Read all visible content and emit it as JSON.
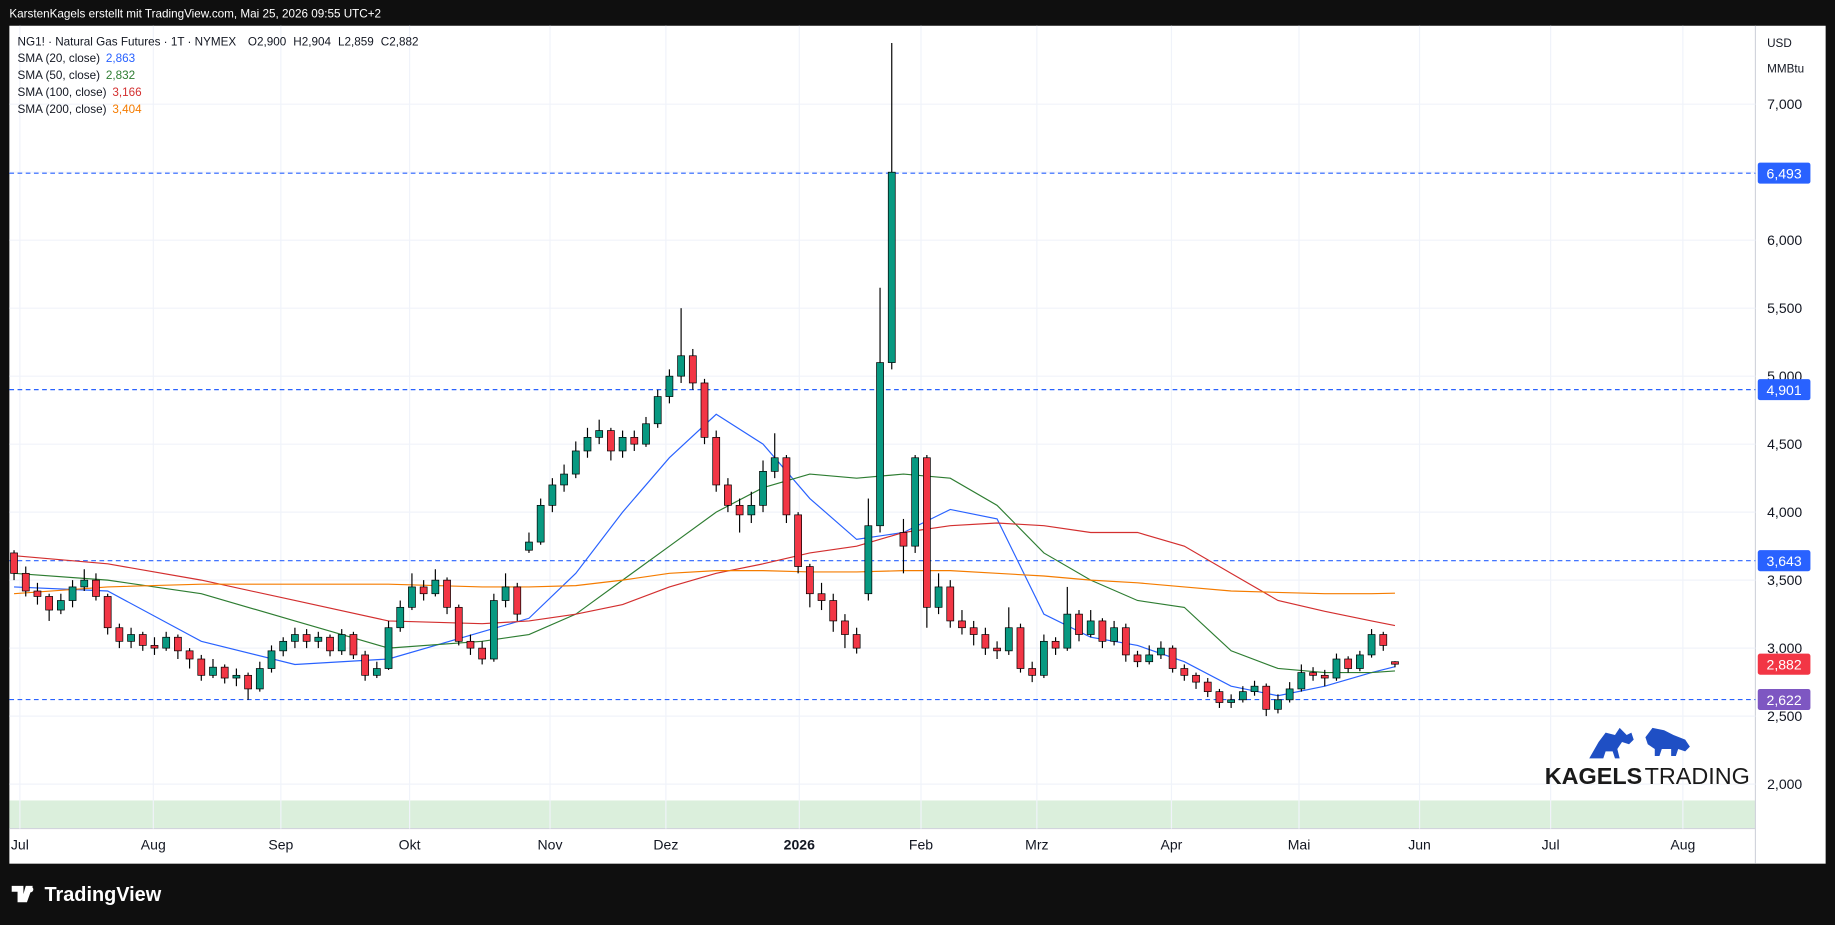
{
  "header": "KarstenKagels erstellt mit TradingView.com, Mai 25, 2026 09:55 UTC+2",
  "footer_brand": "TradingView",
  "watermark": {
    "left": "KAGELS",
    "right": "TRADING"
  },
  "chart_data": {
    "type": "candlestick",
    "title": "NG1! · Natural Gas Futures · 1T · NYMEX",
    "ohlc_legend": [
      {
        "key": "O",
        "value": 2.9,
        "label": "2,900"
      },
      {
        "key": "H",
        "value": 2.904,
        "label": "2,904"
      },
      {
        "key": "L",
        "value": 2.859,
        "label": "2,859"
      },
      {
        "key": "C",
        "value": 2.882,
        "label": "2,882"
      }
    ],
    "currency": "USD",
    "unit": "MMBtu",
    "up_color": "#089981",
    "down_color": "#f23645",
    "grid": true,
    "xlim": [
      -0.4,
      148.8
    ],
    "xticks": [
      {
        "value": 0.5,
        "label": "Jul"
      },
      {
        "value": 11.9,
        "label": "Aug"
      },
      {
        "value": 22.8,
        "label": "Sep"
      },
      {
        "value": 33.8,
        "label": "Okt"
      },
      {
        "value": 45.8,
        "label": "Nov"
      },
      {
        "value": 55.7,
        "label": "Dez"
      },
      {
        "value": 67.1,
        "label": "2026"
      },
      {
        "value": 77.5,
        "label": "Feb"
      },
      {
        "value": 87.4,
        "label": "Mrz"
      },
      {
        "value": 98.9,
        "label": "Apr"
      },
      {
        "value": 109.8,
        "label": "Mai"
      },
      {
        "value": 120.1,
        "label": "Jun"
      },
      {
        "value": 131.3,
        "label": "Jul"
      },
      {
        "value": 142.6,
        "label": "Aug"
      }
    ],
    "ylim": [
      1.673,
      7.577
    ],
    "yticks": [
      {
        "value": 2,
        "label": "2,000"
      },
      {
        "value": 2.5,
        "label": "2,500"
      },
      {
        "value": 3,
        "label": "3,000"
      },
      {
        "value": 3.5,
        "label": "3,500"
      },
      {
        "value": 4,
        "label": "4,000"
      },
      {
        "value": 4.5,
        "label": "4,500"
      },
      {
        "value": 5,
        "label": "5,000"
      },
      {
        "value": 5.5,
        "label": "5,500"
      },
      {
        "value": 6,
        "label": "6,000"
      },
      {
        "value": 6.5,
        "label": "6,500"
      },
      {
        "value": 7,
        "label": "7,000"
      }
    ],
    "candles": [
      [
        3.7,
        3.72,
        3.5,
        3.55
      ],
      [
        3.55,
        3.6,
        3.38,
        3.42
      ],
      [
        3.42,
        3.48,
        3.32,
        3.38
      ],
      [
        3.38,
        3.4,
        3.2,
        3.28
      ],
      [
        3.28,
        3.4,
        3.25,
        3.35
      ],
      [
        3.35,
        3.5,
        3.3,
        3.45
      ],
      [
        3.45,
        3.58,
        3.42,
        3.5
      ],
      [
        3.5,
        3.55,
        3.35,
        3.38
      ],
      [
        3.38,
        3.4,
        3.1,
        3.15
      ],
      [
        3.15,
        3.18,
        3.0,
        3.05
      ],
      [
        3.05,
        3.15,
        3.0,
        3.1
      ],
      [
        3.1,
        3.12,
        2.98,
        3.02
      ],
      [
        3.02,
        3.08,
        2.95,
        3.0
      ],
      [
        3.0,
        3.12,
        2.98,
        3.08
      ],
      [
        3.08,
        3.1,
        2.92,
        2.98
      ],
      [
        2.98,
        3.0,
        2.85,
        2.92
      ],
      [
        2.92,
        2.95,
        2.76,
        2.8
      ],
      [
        2.8,
        2.92,
        2.78,
        2.86
      ],
      [
        2.86,
        2.88,
        2.74,
        2.78
      ],
      [
        2.78,
        2.85,
        2.72,
        2.8
      ],
      [
        2.8,
        2.82,
        2.62,
        2.7
      ],
      [
        2.7,
        2.9,
        2.68,
        2.85
      ],
      [
        2.85,
        3.02,
        2.82,
        2.98
      ],
      [
        2.98,
        3.08,
        2.94,
        3.05
      ],
      [
        3.05,
        3.15,
        3.0,
        3.1
      ],
      [
        3.1,
        3.14,
        3.0,
        3.05
      ],
      [
        3.05,
        3.12,
        3.0,
        3.08
      ],
      [
        3.08,
        3.1,
        2.94,
        2.98
      ],
      [
        2.98,
        3.14,
        2.95,
        3.1
      ],
      [
        3.1,
        3.12,
        2.92,
        2.95
      ],
      [
        2.95,
        2.98,
        2.76,
        2.8
      ],
      [
        2.8,
        2.9,
        2.78,
        2.85
      ],
      [
        2.85,
        3.2,
        2.84,
        3.15
      ],
      [
        3.15,
        3.35,
        3.12,
        3.3
      ],
      [
        3.3,
        3.55,
        3.28,
        3.45
      ],
      [
        3.45,
        3.5,
        3.35,
        3.4
      ],
      [
        3.4,
        3.58,
        3.38,
        3.5
      ],
      [
        3.5,
        3.52,
        3.25,
        3.3
      ],
      [
        3.3,
        3.32,
        3.02,
        3.05
      ],
      [
        3.05,
        3.1,
        2.95,
        3.0
      ],
      [
        3.0,
        3.05,
        2.88,
        2.92
      ],
      [
        2.92,
        3.4,
        2.9,
        3.35
      ],
      [
        3.35,
        3.55,
        3.3,
        3.45
      ],
      [
        3.45,
        3.48,
        3.2,
        3.25
      ],
      [
        3.72,
        3.85,
        3.7,
        3.78
      ],
      [
        3.78,
        4.1,
        3.76,
        4.05
      ],
      [
        4.05,
        4.25,
        4.0,
        4.2
      ],
      [
        4.2,
        4.35,
        4.15,
        4.28
      ],
      [
        4.28,
        4.52,
        4.25,
        4.45
      ],
      [
        4.45,
        4.62,
        4.4,
        4.55
      ],
      [
        4.55,
        4.68,
        4.5,
        4.6
      ],
      [
        4.6,
        4.62,
        4.38,
        4.45
      ],
      [
        4.45,
        4.6,
        4.4,
        4.55
      ],
      [
        4.55,
        4.6,
        4.45,
        4.5
      ],
      [
        4.5,
        4.7,
        4.48,
        4.65
      ],
      [
        4.65,
        4.9,
        4.62,
        4.85
      ],
      [
        4.85,
        5.05,
        4.8,
        5.0
      ],
      [
        5.0,
        5.5,
        4.95,
        5.15
      ],
      [
        5.15,
        5.2,
        4.9,
        4.95
      ],
      [
        4.95,
        4.98,
        4.5,
        4.55
      ],
      [
        4.55,
        4.6,
        4.15,
        4.2
      ],
      [
        4.2,
        4.25,
        4.0,
        4.05
      ],
      [
        4.05,
        4.1,
        3.85,
        3.98
      ],
      [
        3.98,
        4.15,
        3.92,
        4.05
      ],
      [
        4.05,
        4.38,
        4.0,
        4.3
      ],
      [
        4.3,
        4.58,
        4.25,
        4.4
      ],
      [
        4.4,
        4.42,
        3.92,
        3.98
      ],
      [
        3.98,
        4.0,
        3.55,
        3.6
      ],
      [
        3.6,
        3.62,
        3.3,
        3.4
      ],
      [
        3.4,
        3.48,
        3.28,
        3.35
      ],
      [
        3.35,
        3.4,
        3.12,
        3.2
      ],
      [
        3.2,
        3.25,
        3.0,
        3.1
      ],
      [
        3.1,
        3.15,
        2.96,
        3.0
      ],
      [
        3.4,
        4.1,
        3.35,
        3.9
      ],
      [
        3.9,
        5.65,
        3.85,
        5.1
      ],
      [
        5.1,
        7.45,
        5.05,
        6.5
      ],
      [
        3.85,
        3.95,
        3.55,
        3.75
      ],
      [
        3.75,
        4.42,
        3.7,
        4.4
      ],
      [
        4.4,
        4.42,
        3.15,
        3.3
      ],
      [
        3.3,
        3.55,
        3.25,
        3.45
      ],
      [
        3.45,
        3.5,
        3.15,
        3.2
      ],
      [
        3.2,
        3.28,
        3.1,
        3.15
      ],
      [
        3.15,
        3.2,
        3.02,
        3.1
      ],
      [
        3.1,
        3.15,
        2.95,
        3.0
      ],
      [
        3.0,
        3.05,
        2.92,
        2.98
      ],
      [
        2.98,
        3.3,
        2.95,
        3.15
      ],
      [
        3.15,
        3.18,
        2.82,
        2.85
      ],
      [
        2.85,
        2.9,
        2.75,
        2.8
      ],
      [
        2.8,
        3.1,
        2.78,
        3.05
      ],
      [
        3.05,
        3.08,
        2.95,
        3.0
      ],
      [
        3.0,
        3.45,
        2.98,
        3.25
      ],
      [
        3.25,
        3.28,
        3.05,
        3.1
      ],
      [
        3.1,
        3.28,
        3.08,
        3.2
      ],
      [
        3.2,
        3.22,
        3.0,
        3.05
      ],
      [
        3.05,
        3.2,
        3.02,
        3.15
      ],
      [
        3.15,
        3.18,
        2.9,
        2.95
      ],
      [
        2.95,
        2.98,
        2.86,
        2.9
      ],
      [
        2.9,
        3.02,
        2.88,
        2.95
      ],
      [
        2.95,
        3.05,
        2.92,
        3.0
      ],
      [
        3.0,
        3.02,
        2.82,
        2.85
      ],
      [
        2.85,
        2.88,
        2.76,
        2.8
      ],
      [
        2.8,
        2.82,
        2.7,
        2.75
      ],
      [
        2.75,
        2.78,
        2.64,
        2.68
      ],
      [
        2.68,
        2.7,
        2.56,
        2.6
      ],
      [
        2.6,
        2.66,
        2.56,
        2.62
      ],
      [
        2.62,
        2.72,
        2.6,
        2.68
      ],
      [
        2.68,
        2.76,
        2.65,
        2.72
      ],
      [
        2.72,
        2.74,
        2.5,
        2.55
      ],
      [
        2.55,
        2.66,
        2.52,
        2.62
      ],
      [
        2.62,
        2.75,
        2.6,
        2.7
      ],
      [
        2.7,
        2.88,
        2.68,
        2.82
      ],
      [
        2.82,
        2.86,
        2.76,
        2.8
      ],
      [
        2.8,
        2.84,
        2.72,
        2.78
      ],
      [
        2.78,
        2.96,
        2.76,
        2.92
      ],
      [
        2.92,
        2.94,
        2.82,
        2.85
      ],
      [
        2.85,
        2.98,
        2.83,
        2.95
      ],
      [
        2.95,
        3.14,
        2.93,
        3.1
      ],
      [
        3.1,
        3.12,
        2.98,
        3.02
      ],
      [
        2.9,
        2.904,
        2.859,
        2.882
      ]
    ],
    "series": [
      {
        "name": "SMA (20, close)",
        "color": "#2962ff",
        "value_label": "2,863",
        "x": [
          0,
          8,
          16,
          24,
          32,
          40,
          44,
          48,
          52,
          56,
          60,
          64,
          68,
          72,
          76,
          80,
          84,
          88,
          92,
          96,
          100,
          104,
          108,
          112,
          116,
          118
        ],
        "values": [
          3.45,
          3.42,
          3.05,
          2.88,
          2.92,
          3.12,
          3.22,
          3.55,
          4.0,
          4.4,
          4.72,
          4.5,
          4.1,
          3.8,
          3.85,
          4.02,
          3.95,
          3.25,
          3.08,
          3.02,
          2.9,
          2.72,
          2.65,
          2.72,
          2.82,
          2.863
        ]
      },
      {
        "name": "SMA (50, close)",
        "color": "#2e7d32",
        "value_label": "2,832",
        "x": [
          0,
          8,
          16,
          24,
          32,
          40,
          44,
          48,
          52,
          56,
          60,
          64,
          68,
          72,
          76,
          80,
          84,
          88,
          92,
          96,
          100,
          104,
          108,
          112,
          116,
          118
        ],
        "values": [
          3.55,
          3.5,
          3.4,
          3.2,
          3.0,
          3.05,
          3.1,
          3.25,
          3.5,
          3.75,
          4.0,
          4.18,
          4.28,
          4.25,
          4.28,
          4.25,
          4.05,
          3.7,
          3.5,
          3.35,
          3.3,
          2.98,
          2.85,
          2.82,
          2.82,
          2.832
        ]
      },
      {
        "name": "SMA (100, close)",
        "color": "#d32f2f",
        "value_label": "3,166",
        "x": [
          0,
          8,
          16,
          24,
          32,
          40,
          44,
          48,
          52,
          56,
          60,
          64,
          68,
          72,
          76,
          80,
          84,
          88,
          92,
          96,
          100,
          104,
          108,
          112,
          116,
          118
        ],
        "values": [
          3.68,
          3.62,
          3.5,
          3.35,
          3.2,
          3.18,
          3.2,
          3.25,
          3.32,
          3.45,
          3.55,
          3.62,
          3.7,
          3.75,
          3.85,
          3.9,
          3.92,
          3.9,
          3.85,
          3.85,
          3.75,
          3.55,
          3.35,
          3.27,
          3.2,
          3.166
        ]
      },
      {
        "name": "SMA (200, close)",
        "color": "#f57c00",
        "value_label": "3,404",
        "x": [
          0,
          8,
          16,
          24,
          32,
          40,
          44,
          48,
          52,
          56,
          60,
          64,
          68,
          72,
          76,
          80,
          84,
          88,
          92,
          96,
          100,
          104,
          108,
          112,
          116,
          118
        ],
        "values": [
          3.4,
          3.45,
          3.47,
          3.47,
          3.47,
          3.45,
          3.45,
          3.46,
          3.5,
          3.55,
          3.57,
          3.57,
          3.56,
          3.56,
          3.57,
          3.57,
          3.55,
          3.53,
          3.5,
          3.48,
          3.45,
          3.42,
          3.41,
          3.4,
          3.4,
          3.404
        ]
      }
    ],
    "levels": [
      {
        "value": 6.493,
        "label": "6,493",
        "color": "#2962ff"
      },
      {
        "value": 4.901,
        "label": "4,901",
        "color": "#2962ff"
      },
      {
        "value": 3.643,
        "label": "3,643",
        "color": "#2962ff"
      },
      {
        "value": 2.622,
        "label": "2,622",
        "color": "#7e57c2"
      }
    ],
    "last_price": {
      "value": 2.882,
      "label": "2,882",
      "color": "#f23645"
    }
  }
}
